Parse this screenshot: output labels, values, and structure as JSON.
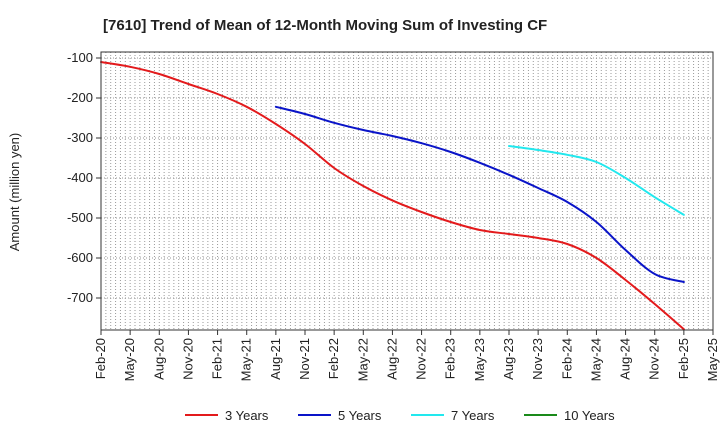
{
  "chart_data": {
    "type": "line",
    "title": "[7610]  Trend of Mean of 12-Month Moving Sum of Investing CF",
    "xlabel": "",
    "ylabel": "Amount (million yen)",
    "ylim": [
      -780,
      -85
    ],
    "yticks": [
      -100,
      -200,
      -300,
      -400,
      -500,
      -600,
      -700
    ],
    "ytick_labels": [
      "-100",
      "-200",
      "-300",
      "-400",
      "-500",
      "-600",
      "-700"
    ],
    "x_categories": [
      "Feb-20",
      "May-20",
      "Aug-20",
      "Nov-20",
      "Feb-21",
      "May-21",
      "Aug-21",
      "Nov-21",
      "Feb-22",
      "May-22",
      "Aug-22",
      "Nov-22",
      "Feb-23",
      "May-23",
      "Aug-23",
      "Nov-23",
      "Feb-24",
      "May-24",
      "Aug-24",
      "Nov-24",
      "Feb-25",
      "May-25"
    ],
    "grid": true,
    "legend_position": "bottom",
    "series": [
      {
        "name": "3 Years",
        "color": "#e31a1c",
        "points": [
          [
            0,
            -110
          ],
          [
            1,
            -122
          ],
          [
            2,
            -140
          ],
          [
            3,
            -165
          ],
          [
            4,
            -190
          ],
          [
            5,
            -222
          ],
          [
            6,
            -265
          ],
          [
            7,
            -315
          ],
          [
            8,
            -375
          ],
          [
            9,
            -420
          ],
          [
            10,
            -456
          ],
          [
            11,
            -485
          ],
          [
            12,
            -510
          ],
          [
            13,
            -530
          ],
          [
            14,
            -540
          ],
          [
            15,
            -550
          ],
          [
            16,
            -565
          ],
          [
            17,
            -600
          ],
          [
            18,
            -655
          ],
          [
            19,
            -715
          ],
          [
            20,
            -778
          ]
        ]
      },
      {
        "name": "5 Years",
        "color": "#0a14c8",
        "points": [
          [
            6,
            -222
          ],
          [
            7,
            -240
          ],
          [
            8,
            -262
          ],
          [
            9,
            -280
          ],
          [
            10,
            -295
          ],
          [
            11,
            -313
          ],
          [
            12,
            -335
          ],
          [
            13,
            -362
          ],
          [
            14,
            -392
          ],
          [
            15,
            -425
          ],
          [
            16,
            -460
          ],
          [
            17,
            -510
          ],
          [
            18,
            -580
          ],
          [
            19,
            -640
          ],
          [
            20,
            -660
          ]
        ]
      },
      {
        "name": "7 Years",
        "color": "#22e8ee",
        "points": [
          [
            14,
            -320
          ],
          [
            15,
            -330
          ],
          [
            16,
            -342
          ],
          [
            17,
            -360
          ],
          [
            18,
            -400
          ],
          [
            19,
            -448
          ],
          [
            20,
            -492
          ]
        ]
      },
      {
        "name": "10 Years",
        "color": "#1a8a1a",
        "points": []
      }
    ]
  }
}
